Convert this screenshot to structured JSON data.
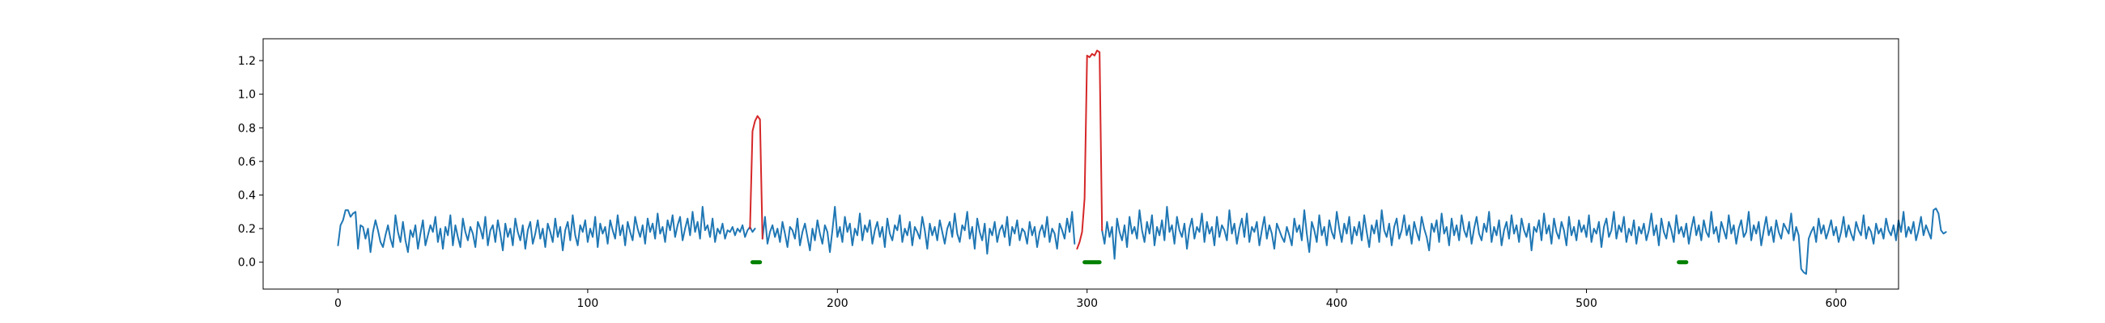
{
  "chart_data": {
    "type": "line",
    "title": "",
    "xlabel": "",
    "ylabel": "",
    "xlim": [
      -30,
      625
    ],
    "ylim": [
      -0.16,
      1.33
    ],
    "x_ticks": [
      0,
      100,
      200,
      300,
      400,
      500,
      600
    ],
    "y_ticks": [
      0.0,
      0.2,
      0.4,
      0.6,
      0.8,
      1.0,
      1.2
    ],
    "x_tick_labels": [
      "0",
      "100",
      "200",
      "300",
      "400",
      "500",
      "600"
    ],
    "y_tick_labels": [
      "0.0",
      "0.2",
      "0.4",
      "0.6",
      "0.8",
      "1.0",
      "1.2"
    ],
    "grid": false,
    "colors": {
      "signal": "#1f77b4",
      "anomaly": "#d62728",
      "marker": "#008000"
    },
    "series": [
      {
        "x_start": 0,
        "x_step": 1,
        "values": [
          0.1,
          0.22,
          0.25,
          0.31,
          0.31,
          0.27,
          0.29,
          0.3,
          0.08,
          0.22,
          0.21,
          0.14,
          0.2,
          0.06,
          0.18,
          0.25,
          0.19,
          0.12,
          0.09,
          0.16,
          0.22,
          0.14,
          0.09,
          0.28,
          0.18,
          0.12,
          0.24,
          0.13,
          0.06,
          0.19,
          0.15,
          0.22,
          0.08,
          0.17,
          0.25,
          0.1,
          0.16,
          0.22,
          0.18,
          0.27,
          0.12,
          0.2,
          0.08,
          0.21,
          0.16,
          0.28,
          0.1,
          0.22,
          0.15,
          0.09,
          0.26,
          0.18,
          0.13,
          0.21,
          0.17,
          0.09,
          0.24,
          0.2,
          0.14,
          0.27,
          0.1,
          0.19,
          0.22,
          0.12,
          0.25,
          0.17,
          0.07,
          0.23,
          0.15,
          0.2,
          0.1,
          0.26,
          0.18,
          0.13,
          0.22,
          0.08,
          0.19,
          0.24,
          0.11,
          0.17,
          0.25,
          0.14,
          0.2,
          0.09,
          0.23,
          0.18,
          0.12,
          0.26,
          0.15,
          0.21,
          0.07,
          0.19,
          0.24,
          0.13,
          0.28,
          0.16,
          0.1,
          0.22,
          0.18,
          0.25,
          0.12,
          0.2,
          0.15,
          0.27,
          0.09,
          0.23,
          0.17,
          0.21,
          0.11,
          0.25,
          0.19,
          0.14,
          0.28,
          0.16,
          0.22,
          0.1,
          0.24,
          0.18,
          0.13,
          0.27,
          0.2,
          0.15,
          0.22,
          0.11,
          0.26,
          0.18,
          0.23,
          0.14,
          0.29,
          0.17,
          0.21,
          0.12,
          0.25,
          0.19,
          0.28,
          0.15,
          0.22,
          0.27,
          0.13,
          0.2,
          0.26,
          0.16,
          0.3,
          0.18,
          0.24,
          0.14,
          0.33,
          0.19,
          0.22,
          0.15,
          0.26,
          0.12,
          0.2,
          0.17,
          0.23,
          0.14,
          0.19,
          0.18,
          0.21,
          0.16,
          0.2,
          0.18,
          0.22,
          0.15,
          0.19,
          0.21,
          0.18,
          0.2,
          0.78,
          0.87,
          0.85,
          0.14
        ],
        "note_unused": ""
      }
    ],
    "line_series": [
      {
        "name": "",
        "color_key": "signal",
        "segments": [
          {
            "x_start": 0,
            "values": [
              0.1,
              0.22,
              0.25,
              0.31,
              0.31,
              0.27,
              0.29,
              0.3,
              0.08,
              0.22,
              0.21,
              0.14,
              0.2,
              0.06,
              0.18,
              0.25,
              0.19,
              0.12,
              0.09,
              0.16,
              0.22,
              0.14,
              0.09,
              0.28,
              0.18,
              0.12,
              0.24,
              0.13,
              0.06,
              0.19,
              0.15,
              0.22,
              0.08,
              0.17,
              0.25,
              0.1,
              0.16,
              0.22,
              0.18,
              0.27,
              0.12,
              0.2,
              0.08,
              0.21,
              0.16,
              0.28,
              0.1,
              0.22,
              0.15,
              0.09,
              0.26,
              0.18,
              0.13,
              0.21,
              0.17,
              0.09,
              0.24,
              0.2,
              0.14,
              0.27,
              0.1,
              0.19,
              0.22,
              0.12,
              0.25,
              0.17,
              0.07,
              0.23,
              0.15,
              0.2,
              0.1,
              0.26,
              0.18,
              0.13,
              0.22,
              0.08,
              0.19,
              0.24,
              0.11,
              0.17,
              0.25,
              0.14,
              0.2,
              0.09,
              0.23,
              0.18,
              0.12,
              0.26,
              0.15,
              0.21,
              0.07,
              0.19,
              0.24,
              0.13,
              0.28,
              0.16,
              0.1,
              0.22,
              0.18,
              0.25,
              0.12,
              0.2,
              0.15,
              0.27,
              0.09,
              0.23,
              0.17,
              0.21,
              0.11,
              0.25,
              0.19,
              0.14,
              0.28,
              0.16,
              0.22,
              0.1,
              0.24,
              0.18,
              0.13,
              0.27,
              0.2,
              0.15,
              0.22,
              0.11,
              0.26,
              0.18,
              0.23,
              0.14,
              0.29,
              0.17,
              0.21,
              0.12,
              0.25,
              0.19,
              0.28,
              0.15,
              0.22,
              0.27,
              0.13,
              0.2,
              0.26,
              0.16,
              0.3,
              0.18,
              0.24,
              0.14,
              0.33,
              0.19,
              0.22,
              0.15,
              0.26,
              0.12,
              0.2,
              0.17,
              0.23,
              0.14,
              0.19,
              0.18,
              0.21,
              0.16,
              0.2,
              0.18,
              0.22,
              0.15,
              0.19,
              0.21,
              0.18,
              0.2
            ]
          },
          {
            "x_start": 170,
            "values": [
              0.14,
              0.27,
              0.11,
              0.18,
              0.22,
              0.15,
              0.2,
              0.12,
              0.24,
              0.17,
              0.09,
              0.21,
              0.19,
              0.14,
              0.26,
              0.1,
              0.18,
              0.23,
              0.15,
              0.07,
              0.2,
              0.13,
              0.25,
              0.17,
              0.11,
              0.22,
              0.18,
              0.06,
              0.19,
              0.33,
              0.15,
              0.21,
              0.12,
              0.27,
              0.18,
              0.23,
              0.1,
              0.2,
              0.16,
              0.29,
              0.13,
              0.22,
              0.18,
              0.25,
              0.11,
              0.19,
              0.24,
              0.15,
              0.21,
              0.09,
              0.26,
              0.17,
              0.13,
              0.22,
              0.19,
              0.28,
              0.12,
              0.2,
              0.16,
              0.24,
              0.1,
              0.21,
              0.18,
              0.14,
              0.27,
              0.19,
              0.08,
              0.23,
              0.16,
              0.21,
              0.13,
              0.25,
              0.18,
              0.11,
              0.2,
              0.24,
              0.15,
              0.29,
              0.17,
              0.12,
              0.22,
              0.19,
              0.3,
              0.14,
              0.21,
              0.08,
              0.26,
              0.18,
              0.13,
              0.23,
              0.05,
              0.2,
              0.16,
              0.24,
              0.12,
              0.19,
              0.22,
              0.15,
              0.27,
              0.1,
              0.21,
              0.17,
              0.25,
              0.13,
              0.2,
              0.18,
              0.11,
              0.24,
              0.16,
              0.21,
              0.09,
              0.18,
              0.22,
              0.15,
              0.27,
              0.12,
              0.2,
              0.17,
              0.08,
              0.23,
              0.19,
              0.14,
              0.26,
              0.18,
              0.3,
              0.11
            ]
          },
          {
            "x_start": 306,
            "values": [
              0.19,
              0.11,
              0.24,
              0.15,
              0.21,
              0.02,
              0.26,
              0.18,
              0.13,
              0.22,
              0.09,
              0.27,
              0.17,
              0.21,
              0.14,
              0.31,
              0.19,
              0.12,
              0.24,
              0.17,
              0.28,
              0.1,
              0.21,
              0.16,
              0.25,
              0.13,
              0.33,
              0.18,
              0.22,
              0.11,
              0.27,
              0.19,
              0.15,
              0.23,
              0.08,
              0.2,
              0.26,
              0.14,
              0.21,
              0.18,
              0.29,
              0.12,
              0.24,
              0.17,
              0.21,
              0.1,
              0.27,
              0.15,
              0.22,
              0.19,
              0.13,
              0.31,
              0.17,
              0.23,
              0.11,
              0.2,
              0.26,
              0.15,
              0.29,
              0.12,
              0.21,
              0.18,
              0.24,
              0.1,
              0.19,
              0.27,
              0.14,
              0.22,
              0.17,
              0.08,
              0.23,
              0.19,
              0.15,
              0.12,
              0.21,
              0.16,
              0.1,
              0.26,
              0.18,
              0.22,
              0.13,
              0.31,
              0.17,
              0.06,
              0.24,
              0.19,
              0.12,
              0.28,
              0.16,
              0.21,
              0.1,
              0.25,
              0.18,
              0.14,
              0.3,
              0.2,
              0.12,
              0.23,
              0.17,
              0.27,
              0.11,
              0.21,
              0.16,
              0.24,
              0.13,
              0.28,
              0.18,
              0.09,
              0.22,
              0.17,
              0.25,
              0.12,
              0.31,
              0.19,
              0.15,
              0.23,
              0.1,
              0.21,
              0.26,
              0.14,
              0.19,
              0.28,
              0.16,
              0.22,
              0.11,
              0.24,
              0.18,
              0.13,
              0.27,
              0.2,
              0.15,
              0.07,
              0.23,
              0.18,
              0.25,
              0.12,
              0.29,
              0.17,
              0.21,
              0.1,
              0.26,
              0.16,
              0.22,
              0.13,
              0.28,
              0.19,
              0.15,
              0.24,
              0.11,
              0.2,
              0.27,
              0.17,
              0.13,
              0.23,
              0.18,
              0.3,
              0.12,
              0.21,
              0.16,
              0.25,
              0.1,
              0.19,
              0.24,
              0.14,
              0.28,
              0.17,
              0.22,
              0.12,
              0.26,
              0.19,
              0.15,
              0.23,
              0.07,
              0.21,
              0.18,
              0.25,
              0.13,
              0.29,
              0.17,
              0.22,
              0.11,
              0.26,
              0.18,
              0.14,
              0.24,
              0.19,
              0.1,
              0.27,
              0.16,
              0.21,
              0.13,
              0.25,
              0.18,
              0.22,
              0.15,
              0.28,
              0.12,
              0.2,
              0.17,
              0.24,
              0.09,
              0.21,
              0.26,
              0.15,
              0.19,
              0.3,
              0.14,
              0.22,
              0.18,
              0.27,
              0.12,
              0.2,
              0.16,
              0.25,
              0.11,
              0.21,
              0.17,
              0.23,
              0.13,
              0.19,
              0.29,
              0.16,
              0.22,
              0.1,
              0.26,
              0.18,
              0.14,
              0.24,
              0.19,
              0.12,
              0.28,
              0.17,
              0.21,
              0.15,
              0.23,
              0.11,
              0.2,
              0.27,
              0.16,
              0.22,
              0.13,
              0.25,
              0.18,
              0.15,
              0.3,
              0.17,
              0.21,
              0.12,
              0.24,
              0.19,
              0.14,
              0.28,
              0.17,
              0.22,
              0.11,
              0.2,
              0.25,
              0.15,
              0.18,
              0.3,
              0.13,
              0.22,
              0.17,
              0.24,
              0.1,
              0.19,
              0.27,
              0.16,
              0.21,
              0.12,
              0.25,
              0.18,
              0.14,
              0.23,
              0.2,
              0.17,
              0.29,
              0.13,
              0.21,
              0.16,
              -0.04,
              -0.06,
              -0.07,
              0.14,
              0.18,
              0.21,
              0.12,
              0.26,
              0.17,
              0.22,
              0.14,
              0.19,
              0.25,
              0.16,
              0.21,
              0.12,
              0.18,
              0.27,
              0.15,
              0.22,
              0.17,
              0.13,
              0.24,
              0.19,
              0.16,
              0.28,
              0.14,
              0.21,
              0.18,
              0.11,
              0.23,
              0.17,
              0.2,
              0.14,
              0.26,
              0.19,
              0.16,
              0.22,
              0.13,
              0.25,
              0.18,
              0.3,
              0.15,
              0.21,
              0.17,
              0.24,
              0.13,
              0.19,
              0.27,
              0.16,
              0.22,
              0.18,
              0.14,
              0.31,
              0.32,
              0.29,
              0.19,
              0.17,
              0.18
            ]
          }
        ]
      },
      {
        "name": "",
        "color_key": "anomaly",
        "segments": [
          {
            "x_start": 165,
            "values": [
              0.2,
              0.78,
              0.84,
              0.87,
              0.85,
              0.14
            ]
          },
          {
            "x_start": 296,
            "values": [
              0.08,
              0.12,
              0.18,
              0.38,
              1.23,
              1.22,
              1.24,
              1.23,
              1.26,
              1.25,
              0.19
            ]
          }
        ]
      }
    ],
    "marker_segments": [
      {
        "color_key": "marker",
        "x_from": 166,
        "x_to": 169,
        "y": 0.0
      },
      {
        "color_key": "marker",
        "x_from": 299,
        "x_to": 305,
        "y": 0.0
      },
      {
        "color_key": "marker",
        "x_from": 537,
        "x_to": 540,
        "y": 0.0
      }
    ]
  }
}
